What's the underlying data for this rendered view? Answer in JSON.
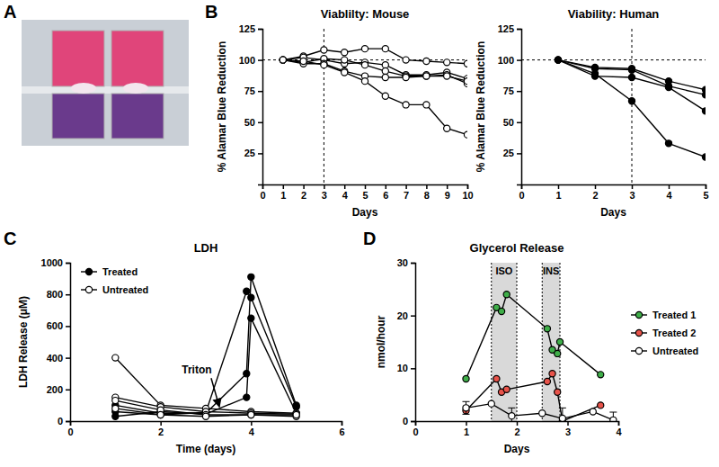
{
  "image": {
    "panel": "A"
  },
  "chart_data": [
    {
      "type": "line",
      "panel": "B",
      "title": "Viablilty: Mouse",
      "x_label": "Days",
      "y_label": "% Alamar Blue Reduction",
      "xlim": [
        0,
        10
      ],
      "xticks": [
        0,
        1,
        2,
        3,
        4,
        5,
        6,
        7,
        8,
        9,
        10
      ],
      "ylim": [
        0,
        125
      ],
      "yticks": [
        25,
        50,
        75,
        100,
        125
      ],
      "hlines": [
        100
      ],
      "vlines": [
        3
      ],
      "line_style": "solid",
      "x": [
        1,
        2,
        3,
        4,
        5,
        6,
        7,
        8,
        9,
        10
      ],
      "series": [
        {
          "color": "#000000",
          "marker": "circle-open",
          "values": [
            100,
            103,
            108,
            106,
            109,
            109,
            100,
            99,
            98,
            97
          ]
        },
        {
          "color": "#000000",
          "marker": "circle-open",
          "values": [
            100,
            102,
            100,
            97,
            98,
            96,
            88,
            88,
            90,
            85
          ]
        },
        {
          "color": "#000000",
          "marker": "circle-open",
          "values": [
            100,
            98,
            101,
            100,
            96,
            91,
            87,
            87,
            88,
            81
          ]
        },
        {
          "color": "#000000",
          "marker": "circle-open",
          "values": [
            100,
            97,
            97,
            91,
            87,
            86,
            86,
            87,
            87,
            83
          ]
        },
        {
          "color": "#000000",
          "marker": "circle-open",
          "values": [
            100,
            99,
            96,
            90,
            83,
            71,
            64,
            64,
            45,
            40
          ]
        }
      ]
    },
    {
      "type": "line",
      "title": "Viability: Human",
      "x_label": "Days",
      "y_label": "% Alamar Blue Reduction",
      "xlim": [
        0,
        5
      ],
      "xticks": [
        0,
        1,
        2,
        3,
        4,
        5
      ],
      "ylim": [
        0,
        125
      ],
      "yticks": [
        25,
        50,
        75,
        100,
        125
      ],
      "hlines": [
        100
      ],
      "vlines": [
        3
      ],
      "line_style": "solid",
      "x": [
        1,
        2,
        3,
        4,
        5
      ],
      "series": [
        {
          "color": "#000000",
          "marker": "circle",
          "values": [
            100,
            94,
            93,
            83,
            76
          ]
        },
        {
          "color": "#000000",
          "marker": "circle",
          "values": [
            100,
            93,
            92,
            79,
            72
          ]
        },
        {
          "color": "#000000",
          "marker": "circle",
          "values": [
            100,
            87,
            86,
            78,
            59
          ]
        },
        {
          "color": "#000000",
          "marker": "circle",
          "values": [
            100,
            89,
            67,
            33,
            22
          ]
        }
      ]
    },
    {
      "type": "line",
      "panel": "C",
      "title": "LDH",
      "x_label": "Time (days)",
      "y_label": "LDH Release  (μM)",
      "xlim": [
        0,
        6
      ],
      "xticks": [
        0,
        2,
        4,
        6
      ],
      "ylim": [
        0,
        1000
      ],
      "yticks": [
        0,
        200,
        400,
        600,
        800,
        1000
      ],
      "legend": "top-left",
      "line_style": "solid",
      "annotations": [
        {
          "text": "Triton",
          "x": 2.8,
          "y": 300,
          "arrow_x": 3.3,
          "arrow_y": 90
        }
      ],
      "series": [
        {
          "name": "Treated",
          "color": "#000000",
          "marker": "circle",
          "x": [
            1,
            2,
            3,
            3.9,
            4,
            5
          ],
          "replicates": [
            [
              60,
              40,
              55,
              820,
              780,
              90
            ],
            [
              100,
              50,
              50,
              300,
              910,
              100
            ],
            [
              30,
              60,
              45,
              150,
              650,
              50
            ]
          ]
        },
        {
          "name": "Untreated",
          "color": "#000000",
          "marker": "circle-open",
          "x": [
            1,
            2,
            3,
            4,
            5
          ],
          "replicates": [
            [
              400,
              100,
              80,
              60,
              50
            ],
            [
              150,
              90,
              60,
              50,
              45
            ],
            [
              130,
              70,
              40,
              40,
              30
            ],
            [
              80,
              40,
              30,
              40,
              40
            ]
          ]
        }
      ]
    },
    {
      "type": "line",
      "panel": "D",
      "title": "Glycerol Release",
      "x_label": "Days",
      "y_label": "nmol/hour",
      "xlim": [
        0,
        4
      ],
      "xticks": [
        0,
        1,
        2,
        3,
        4
      ],
      "ylim": [
        0,
        30
      ],
      "yticks": [
        0,
        10,
        20,
        30
      ],
      "legend": "right",
      "line_style": "solid",
      "bands": [
        {
          "label": "ISO",
          "start": 1.5,
          "end": 2
        },
        {
          "label": "INS",
          "start": 2.5,
          "end": 2.85
        }
      ],
      "series": [
        {
          "name": "Treated 1",
          "color": "#3fae49",
          "marker": "circle",
          "x": [
            1,
            1.6,
            1.7,
            1.8,
            2.6,
            2.7,
            2.8,
            2.85,
            3.65
          ],
          "values": [
            8,
            21.5,
            20.8,
            24,
            17.5,
            13.5,
            12.8,
            15,
            8.8
          ]
        },
        {
          "name": "Treated 2",
          "color": "#e8534a",
          "marker": "circle",
          "x": [
            1,
            1.6,
            1.7,
            1.8,
            2.6,
            2.7,
            2.8,
            2.9,
            3.65
          ],
          "values": [
            2,
            8,
            5.5,
            6,
            7.5,
            9,
            5.5,
            0,
            3
          ]
        },
        {
          "name": "Untreated",
          "color": "#000000",
          "marker": "circle-open",
          "x": [
            1,
            1.5,
            1.9,
            2.5,
            2.9,
            3.5,
            3.9
          ],
          "values": [
            2.5,
            3.3,
            1,
            1.5,
            0.5,
            1.8,
            0.2
          ],
          "errors": [
            1.2,
            null,
            1.5,
            null,
            2,
            null,
            1.5
          ]
        }
      ]
    }
  ]
}
